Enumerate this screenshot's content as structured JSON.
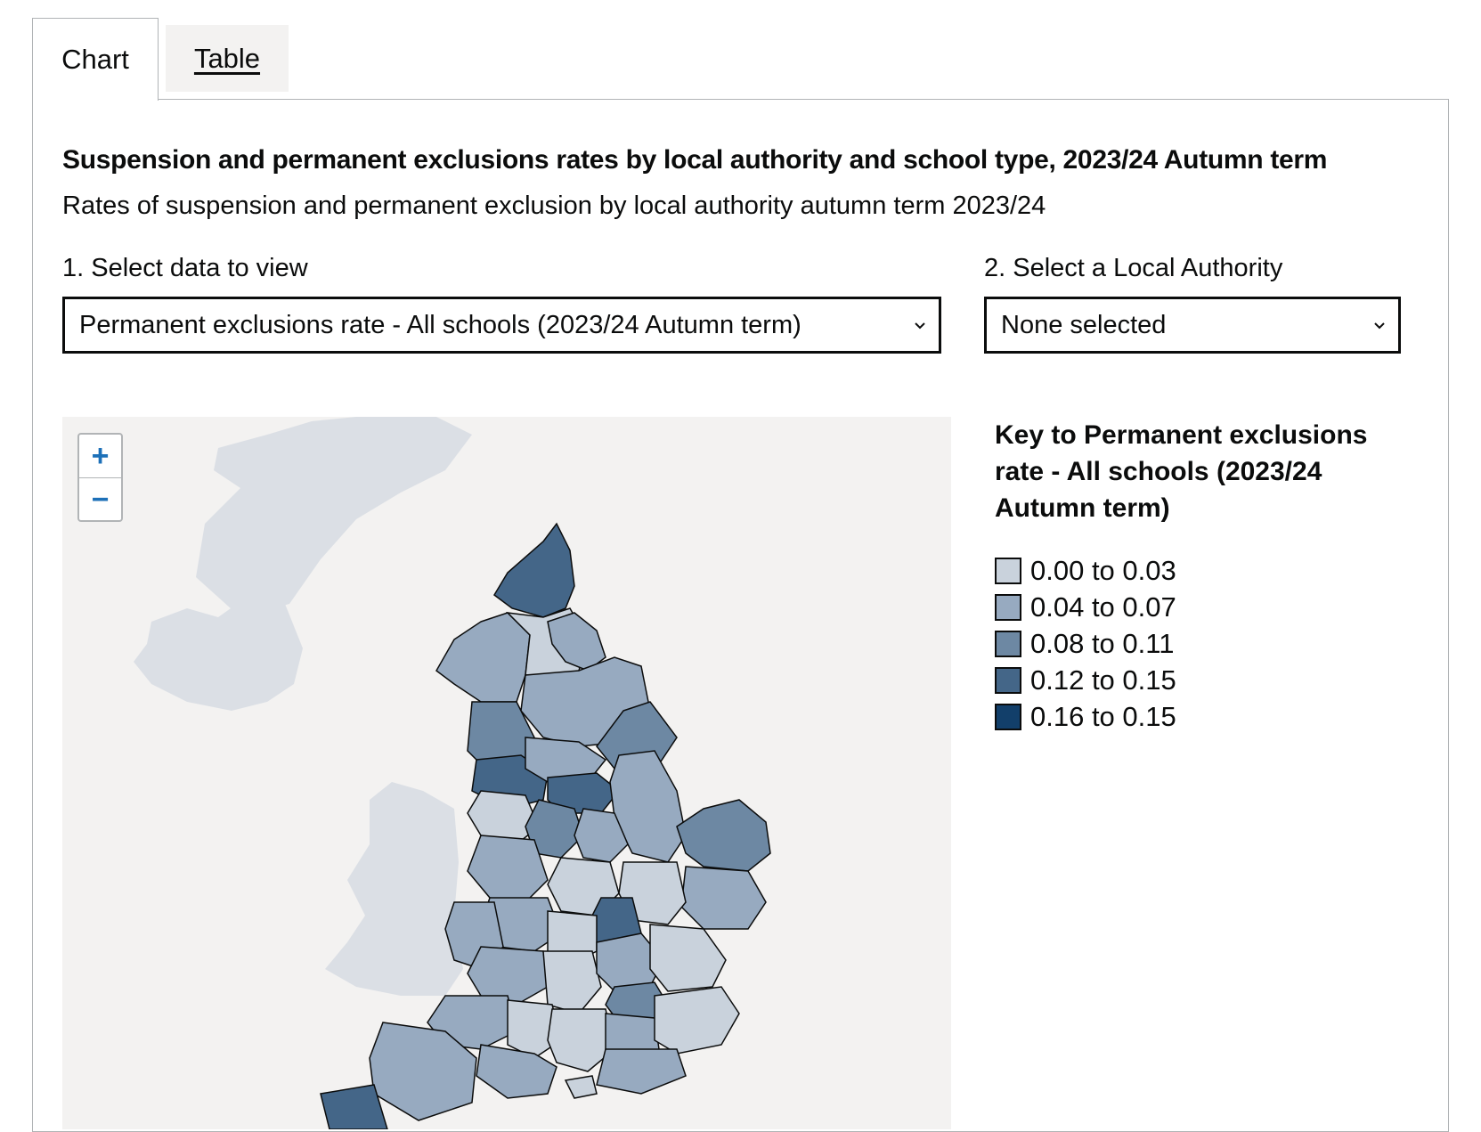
{
  "tabs": [
    {
      "label": "Chart"
    },
    {
      "label": "Table"
    }
  ],
  "chart": {
    "title": "Suspension and permanent exclusions rates by local authority and school type, 2023/24 Autumn term",
    "subtitle": "Rates of suspension and permanent exclusion by local authority autumn term 2023/24"
  },
  "controls": {
    "data_label": "1. Select data to view",
    "data_value": "Permanent exclusions rate - All schools (2023/24 Autumn term)",
    "la_label": "2. Select a Local Authority",
    "la_value": "None selected"
  },
  "map": {
    "zoom_in": "+",
    "zoom_out": "−"
  },
  "key": {
    "title": "Key to Permanent exclusions rate - All schools (2023/24 Autumn term)",
    "items": [
      {
        "label": "0.00 to 0.03",
        "color": "#c9d2dc"
      },
      {
        "label": "0.04 to 0.07",
        "color": "#97aac0"
      },
      {
        "label": "0.08 to 0.11",
        "color": "#6d88a3"
      },
      {
        "label": "0.12 to 0.15",
        "color": "#446688"
      },
      {
        "label": "0.16 to 0.15",
        "color": "#123f6a"
      }
    ]
  },
  "colors": {
    "land_background": "#dbdfe5",
    "sea": "#f3f2f1",
    "link": "#1d70b8"
  }
}
